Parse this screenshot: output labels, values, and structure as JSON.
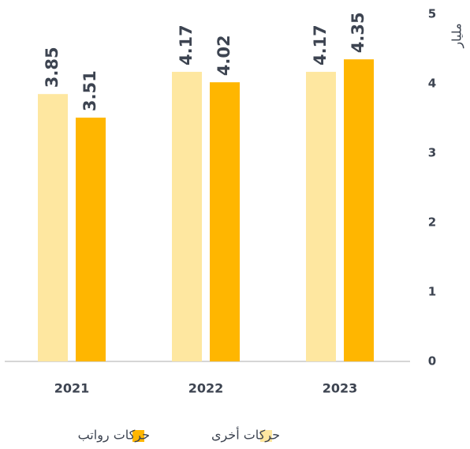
{
  "chart_data": {
    "type": "bar",
    "y_label": "مليار",
    "categories": [
      "2021",
      "2022",
      "2023"
    ],
    "series": [
      {
        "name": "حركات أخرى",
        "color": "#fee7a0",
        "values": [
          3.85,
          4.17,
          4.17
        ]
      },
      {
        "name": "حركات رواتب",
        "color": "#ffb600",
        "values": [
          3.51,
          4.02,
          4.35
        ]
      }
    ],
    "ylim": [
      0,
      5
    ],
    "yticks": [
      0,
      1,
      2,
      3,
      4,
      5
    ],
    "legend": "bottom"
  }
}
